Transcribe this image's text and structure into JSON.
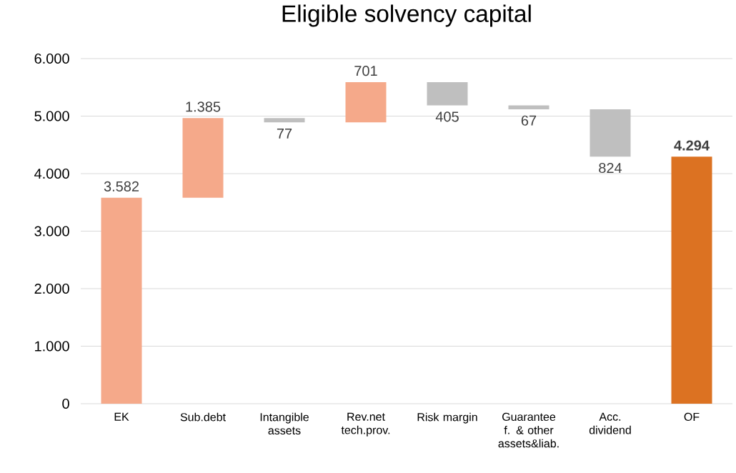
{
  "chart_data": {
    "type": "bar",
    "title": "Eligible solvency capital",
    "categories": [
      "EK",
      "Sub.debt",
      "Intangible assets",
      "Rev.net tech.prov.",
      "Risk margin",
      "Guarantee f. & other assets&liab.",
      "Acc. dividend",
      "OF"
    ],
    "values": [
      3582,
      1385,
      -77,
      701,
      -405,
      -67,
      -824,
      4294
    ],
    "base": [
      0,
      3582,
      4967,
      4890,
      5591,
      5186,
      5119,
      0
    ],
    "colors": [
      "#f5a98a",
      "#f5a98a",
      "#bfbfbf",
      "#f5a98a",
      "#bfbfbf",
      "#bfbfbf",
      "#bfbfbf",
      "#dc7222"
    ],
    "value_labels": [
      "3.582",
      "1.385",
      "77",
      "701",
      "405",
      "67",
      "824",
      "**4.294**"
    ],
    "ylim": [
      0,
      6000
    ],
    "yticks": [
      0,
      {
        "value": 1000,
        "label": "1.000"
      },
      {
        "value": 2000,
        "label": "2.000"
      },
      {
        "value": 3000,
        "label": "3.000"
      },
      {
        "value": 4000,
        "label": "4.000"
      },
      {
        "value": 5000,
        "label": "5.000"
      },
      {
        "value": 6000,
        "label": "6.000"
      }
    ],
    "grid": "y"
  }
}
